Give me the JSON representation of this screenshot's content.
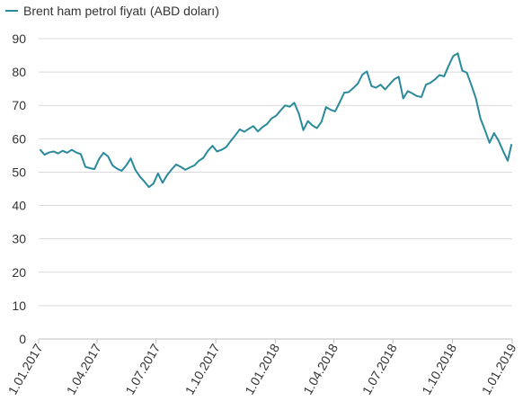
{
  "chart_data": {
    "type": "line",
    "title": "",
    "xlabel": "",
    "ylabel": "",
    "legend": {
      "position": "top-left",
      "entries": [
        "Brent ham petrol fiyatı (ABD doları)"
      ]
    },
    "grid": "horizontal",
    "ylim": [
      0,
      90
    ],
    "y_ticks": [
      0,
      10,
      20,
      30,
      40,
      50,
      60,
      70,
      80,
      90
    ],
    "xlim": [
      "2017-01-01",
      "2019-01-01"
    ],
    "x_ticks": [
      "2017-01-01",
      "2017-04-01",
      "2017-07-01",
      "2017-10-01",
      "2018-01-01",
      "2018-04-01",
      "2018-07-01",
      "2018-10-01",
      "2019-01-01"
    ],
    "x_tick_labels": [
      "1.01.2017",
      "1.04.2017",
      "1.07.2017",
      "1.10.2017",
      "1.01.2018",
      "1.04.2018",
      "1.07.2018",
      "1.10.2018",
      "1.01.2019"
    ],
    "series": [
      {
        "name": "Brent ham petrol fiyatı (ABD doları)",
        "color": "#2a8a9c",
        "x": [
          "2017-01-03",
          "2017-01-10",
          "2017-01-17",
          "2017-01-24",
          "2017-01-31",
          "2017-02-07",
          "2017-02-14",
          "2017-02-21",
          "2017-02-28",
          "2017-03-07",
          "2017-03-14",
          "2017-03-21",
          "2017-03-28",
          "2017-04-04",
          "2017-04-11",
          "2017-04-18",
          "2017-04-25",
          "2017-05-02",
          "2017-05-09",
          "2017-05-16",
          "2017-05-23",
          "2017-05-30",
          "2017-06-06",
          "2017-06-13",
          "2017-06-20",
          "2017-06-27",
          "2017-07-04",
          "2017-07-11",
          "2017-07-18",
          "2017-07-25",
          "2017-08-01",
          "2017-08-08",
          "2017-08-15",
          "2017-08-22",
          "2017-08-29",
          "2017-09-05",
          "2017-09-12",
          "2017-09-19",
          "2017-09-26",
          "2017-10-03",
          "2017-10-10",
          "2017-10-17",
          "2017-10-24",
          "2017-10-31",
          "2017-11-07",
          "2017-11-14",
          "2017-11-21",
          "2017-11-28",
          "2017-12-05",
          "2017-12-12",
          "2017-12-19",
          "2017-12-26",
          "2018-01-02",
          "2018-01-09",
          "2018-01-16",
          "2018-01-23",
          "2018-01-30",
          "2018-02-06",
          "2018-02-13",
          "2018-02-20",
          "2018-02-27",
          "2018-03-06",
          "2018-03-13",
          "2018-03-20",
          "2018-03-27",
          "2018-04-03",
          "2018-04-10",
          "2018-04-17",
          "2018-04-24",
          "2018-05-01",
          "2018-05-08",
          "2018-05-15",
          "2018-05-22",
          "2018-05-29",
          "2018-06-05",
          "2018-06-12",
          "2018-06-19",
          "2018-06-26",
          "2018-07-03",
          "2018-07-10",
          "2018-07-17",
          "2018-07-24",
          "2018-07-31",
          "2018-08-07",
          "2018-08-14",
          "2018-08-21",
          "2018-08-28",
          "2018-09-04",
          "2018-09-11",
          "2018-09-18",
          "2018-09-25",
          "2018-10-02",
          "2018-10-09",
          "2018-10-16",
          "2018-10-23",
          "2018-10-30",
          "2018-11-06",
          "2018-11-13",
          "2018-11-20",
          "2018-11-27",
          "2018-12-04",
          "2018-12-11",
          "2018-12-18",
          "2018-12-25",
          "2018-12-31"
        ],
        "values": [
          56.8,
          55.2,
          55.9,
          56.2,
          55.6,
          56.4,
          55.8,
          56.7,
          55.9,
          55.4,
          51.6,
          51.2,
          50.9,
          53.9,
          55.8,
          54.7,
          52.0,
          51.0,
          50.4,
          52.0,
          54.1,
          50.7,
          48.7,
          47.2,
          45.5,
          46.6,
          49.6,
          46.8,
          49.1,
          50.8,
          52.3,
          51.6,
          50.7,
          51.4,
          52.0,
          53.4,
          54.3,
          56.4,
          57.9,
          56.2,
          56.7,
          57.5,
          59.3,
          61.0,
          62.8,
          62.1,
          63.0,
          63.8,
          62.2,
          63.5,
          64.4,
          66.1,
          66.9,
          68.5,
          70.0,
          69.6,
          70.8,
          67.6,
          62.6,
          65.3,
          64.0,
          63.2,
          65.1,
          69.5,
          68.7,
          68.2,
          70.9,
          73.8,
          74.0,
          75.2,
          76.5,
          79.2,
          80.2,
          75.8,
          75.3,
          76.2,
          74.8,
          76.3,
          77.8,
          78.6,
          72.1,
          74.3,
          73.6,
          72.8,
          72.5,
          76.2,
          76.8,
          77.8,
          79.1,
          78.7,
          81.9,
          84.8,
          85.6,
          80.4,
          79.8,
          76.1,
          72.1,
          66.1,
          62.6,
          58.8,
          61.7,
          59.4,
          56.3,
          53.4,
          58.4
        ]
      }
    ]
  }
}
